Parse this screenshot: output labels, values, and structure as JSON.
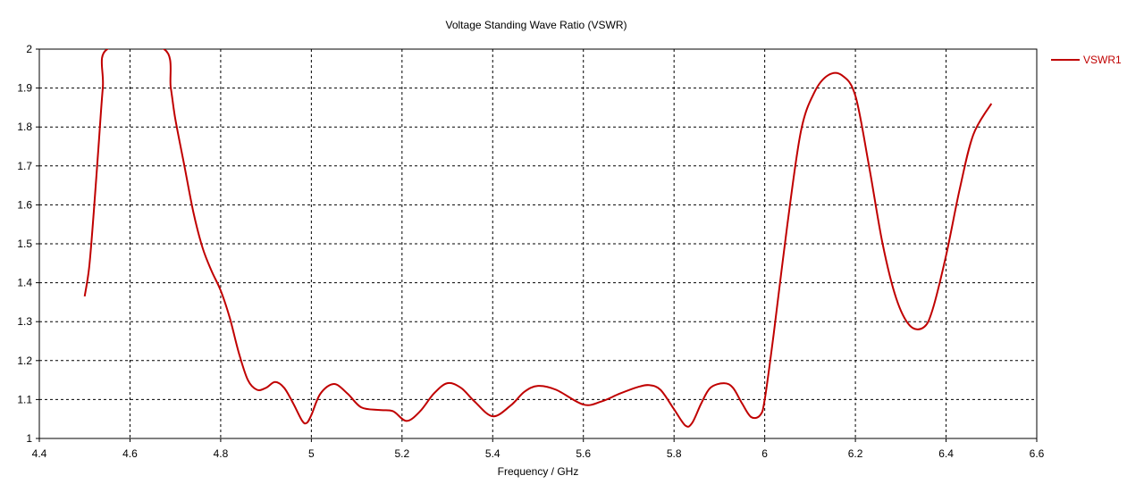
{
  "chart_data": {
    "type": "line",
    "title": "Voltage Standing Wave Ratio (VSWR)",
    "xlabel": "Frequency / GHz",
    "ylabel": "",
    "xlim": [
      4.4,
      6.6
    ],
    "ylim": [
      1,
      2
    ],
    "xticks": [
      "4.4",
      "4.6",
      "4.8",
      "5",
      "5.2",
      "5.4",
      "5.6",
      "5.8",
      "6",
      "6.2",
      "6.4",
      "6.6"
    ],
    "yticks": [
      "1",
      "1.1",
      "1.2",
      "1.3",
      "1.4",
      "1.5",
      "1.6",
      "1.7",
      "1.8",
      "1.9",
      "2"
    ],
    "grid": true,
    "grid_style": "dashed",
    "legend_position": "top-right",
    "series": [
      {
        "name": "VSWR1",
        "color": "#c00000",
        "x": [
          4.5,
          4.51,
          4.52,
          4.53,
          4.54,
          4.55,
          4.675,
          4.69,
          4.7,
          4.72,
          4.74,
          4.76,
          4.78,
          4.8,
          4.82,
          4.84,
          4.86,
          4.88,
          4.9,
          4.92,
          4.94,
          4.96,
          4.98,
          4.99,
          5.0,
          5.02,
          5.05,
          5.08,
          5.11,
          5.15,
          5.18,
          5.21,
          5.24,
          5.27,
          5.3,
          5.33,
          5.36,
          5.4,
          5.44,
          5.47,
          5.5,
          5.54,
          5.6,
          5.64,
          5.68,
          5.72,
          5.745,
          5.77,
          5.8,
          5.825,
          5.84,
          5.86,
          5.88,
          5.91,
          5.93,
          5.95,
          5.97,
          5.99,
          6.0,
          6.02,
          6.05,
          6.08,
          6.11,
          6.14,
          6.17,
          6.2,
          6.23,
          6.26,
          6.29,
          6.32,
          6.35,
          6.37,
          6.4,
          6.43,
          6.46,
          6.5
        ],
        "y": [
          1.365,
          1.44,
          1.58,
          1.74,
          1.9,
          2.0,
          2.0,
          1.9,
          1.82,
          1.7,
          1.58,
          1.49,
          1.43,
          1.38,
          1.31,
          1.22,
          1.15,
          1.125,
          1.13,
          1.145,
          1.13,
          1.09,
          1.045,
          1.04,
          1.06,
          1.115,
          1.14,
          1.115,
          1.08,
          1.073,
          1.07,
          1.045,
          1.07,
          1.115,
          1.142,
          1.13,
          1.095,
          1.057,
          1.085,
          1.12,
          1.135,
          1.125,
          1.087,
          1.095,
          1.115,
          1.132,
          1.137,
          1.125,
          1.075,
          1.033,
          1.04,
          1.09,
          1.13,
          1.142,
          1.13,
          1.09,
          1.055,
          1.06,
          1.1,
          1.27,
          1.55,
          1.79,
          1.89,
          1.933,
          1.933,
          1.88,
          1.7,
          1.5,
          1.36,
          1.29,
          1.285,
          1.33,
          1.47,
          1.64,
          1.78,
          1.86
        ]
      }
    ]
  }
}
